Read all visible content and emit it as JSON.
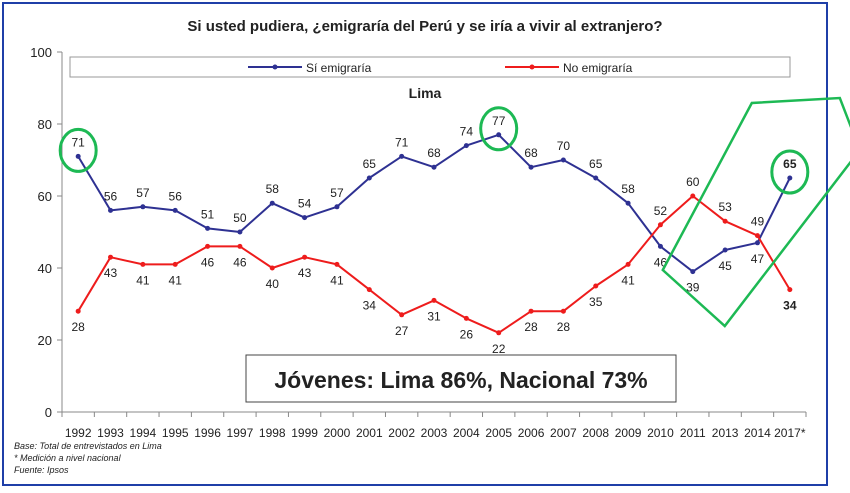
{
  "title": "Si usted pudiera, ¿emigraría del Perú y se iría a vivir al extranjero?",
  "subtitle": "Lima",
  "callout": "Jóvenes: Lima 86%, Nacional 73%",
  "notes": [
    "Base: Total de entrevistados en Lima",
    "* Medición a nivel nacional",
    "Fuente: Ipsos"
  ],
  "colors": {
    "frame": "#1f3fa8",
    "si": "#2e3192",
    "no": "#ee1c1c",
    "highlight": "#1db954"
  },
  "chart_data": {
    "type": "line",
    "title": "Si usted pudiera, ¿emigraría del Perú y se iría a vivir al extranjero?",
    "subtitle": "Lima",
    "categories": [
      "1992",
      "1993",
      "1994",
      "1995",
      "1996",
      "1997",
      "1998",
      "1999",
      "2000",
      "2001",
      "2002",
      "2003",
      "2004",
      "2005",
      "2006",
      "2007",
      "2008",
      "2009",
      "2010",
      "2011",
      "2013",
      "2014",
      "2017*"
    ],
    "series": [
      {
        "name": "Sí emigraría",
        "color": "#2e3192",
        "values": [
          71,
          56,
          57,
          56,
          51,
          50,
          58,
          54,
          57,
          65,
          71,
          68,
          74,
          77,
          68,
          70,
          65,
          58,
          46,
          39,
          45,
          47,
          65
        ]
      },
      {
        "name": "No emigraría",
        "color": "#ee1c1c",
        "values": [
          28,
          43,
          41,
          41,
          46,
          46,
          40,
          43,
          41,
          34,
          27,
          31,
          26,
          22,
          28,
          28,
          35,
          41,
          52,
          60,
          53,
          49,
          34
        ]
      }
    ],
    "ylim": [
      0,
      100
    ],
    "yticks": [
      0,
      20,
      40,
      60,
      80,
      100
    ],
    "legend": "top",
    "grid": false,
    "highlighted_points": [
      {
        "series": "Sí emigraría",
        "category": "1992",
        "value": 71
      },
      {
        "series": "Sí emigraría",
        "category": "2005",
        "value": 77
      },
      {
        "series": "Sí emigraría",
        "category": "2017*",
        "value": 65
      }
    ],
    "bold_labels": [
      {
        "series": "Sí emigraría",
        "category": "2017*"
      },
      {
        "series": "No emigraría",
        "category": "2017*"
      }
    ]
  }
}
